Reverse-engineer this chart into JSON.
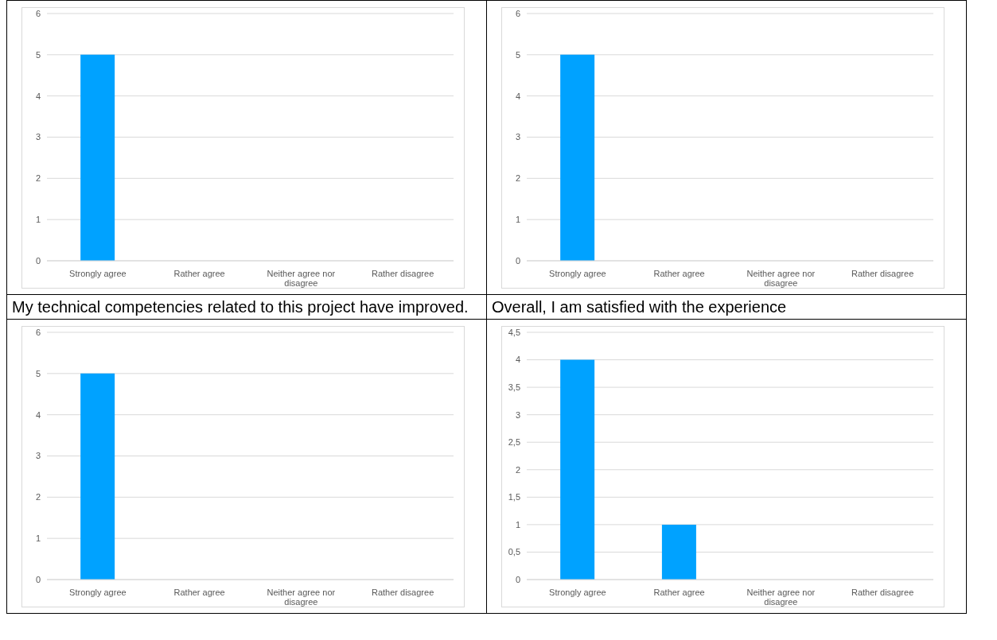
{
  "chart_data": [
    {
      "type": "bar",
      "categories": [
        "Strongly agree",
        "Rather agree",
        "Neither agree nor disagree",
        "Rather disagree"
      ],
      "values": [
        5,
        0,
        0,
        0
      ],
      "color": "#00a2ff",
      "ylim": [
        0,
        6
      ],
      "yticks": [
        0,
        1,
        2,
        3,
        4,
        5,
        6
      ],
      "grid": "y",
      "annotations": [
        "My technical competencies related to this project have improved."
      ]
    },
    {
      "type": "bar",
      "categories": [
        "Strongly agree",
        "Rather agree",
        "Neither agree nor disagree",
        "Rather disagree"
      ],
      "values": [
        5,
        0,
        0,
        0
      ],
      "color": "#00a2ff",
      "ylim": [
        0,
        6
      ],
      "yticks": [
        0,
        1,
        2,
        3,
        4,
        5,
        6
      ],
      "grid": "y",
      "annotations": [
        "Overall, I am satisfied with the experience"
      ]
    },
    {
      "type": "bar",
      "categories": [
        "Strongly agree",
        "Rather agree",
        "Neither agree nor disagree",
        "Rather disagree"
      ],
      "values": [
        5,
        0,
        0,
        0
      ],
      "color": "#00a2ff",
      "ylim": [
        0,
        6
      ],
      "yticks": [
        0,
        1,
        2,
        3,
        4,
        5,
        6
      ],
      "grid": "y"
    },
    {
      "type": "bar",
      "categories": [
        "Strongly agree",
        "Rather agree",
        "Neither agree nor disagree",
        "Rather disagree"
      ],
      "values": [
        4,
        1,
        0,
        0
      ],
      "color": "#00a2ff",
      "ylim": [
        0,
        4.5
      ],
      "yticks": [
        0,
        {
          "value": 0.5,
          "label": "0,5"
        },
        1,
        {
          "value": 1.5,
          "label": "1,5"
        },
        2,
        {
          "value": 2.5,
          "label": "2,5"
        },
        3,
        {
          "value": 3.5,
          "label": "3,5"
        },
        4,
        {
          "value": 4.5,
          "label": "4,5"
        }
      ],
      "grid": "y"
    }
  ]
}
